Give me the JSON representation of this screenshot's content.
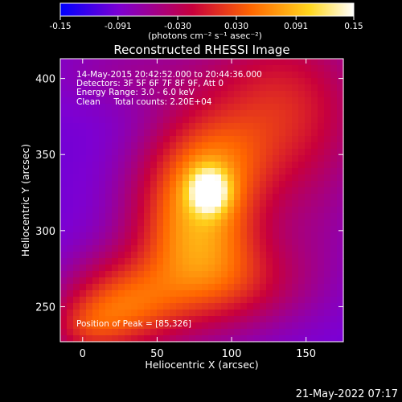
{
  "chart_data": {
    "type": "heatmap",
    "title": "Reconstructed RHESSI Image",
    "xlabel": "Heliocentric X (arcsec)",
    "ylabel": "Heliocentric Y (arcsec)",
    "xlim": [
      -15,
      175
    ],
    "ylim": [
      227,
      413
    ],
    "x_ticks": [
      0,
      50,
      100,
      150
    ],
    "y_ticks": [
      250,
      300,
      350,
      400
    ],
    "grid": false,
    "colorbar": {
      "range": [
        -0.15,
        0.15
      ],
      "ticks": [
        "-0.15",
        "-0.091",
        "-0.030",
        "0.030",
        "0.091",
        "0.15"
      ],
      "label": "(photons cm⁻² s⁻¹ asec⁻²)",
      "stops": [
        "#0000ff",
        "#7d00d2",
        "#c8003c",
        "#ff6600",
        "#ffd71e",
        "#ffffff"
      ]
    },
    "annotations": [
      "14-May-2015 20:42:52.000 to 20:44:36.000",
      "Detectors: 3F 5F 6F 7F 8F 9F, Att 0",
      "Energy Range: 3.0 - 6.0 keV",
      "Clean     Total counts: 2.20E+04"
    ],
    "peak_label": "Position of Peak = [85,326]",
    "peak": [
      85,
      326
    ],
    "field": {
      "base": -0.095,
      "components": [
        {
          "x": 85,
          "y": 326,
          "sx": 9,
          "sy": 10,
          "amp": 0.13
        },
        {
          "x": 75,
          "y": 300,
          "sx": 30,
          "sy": 38,
          "amp": 0.15
        },
        {
          "x": 85,
          "y": 345,
          "sx": 28,
          "sy": 26,
          "amp": 0.06
        },
        {
          "x": 135,
          "y": 380,
          "sx": 40,
          "sy": 42,
          "amp": 0.1
        },
        {
          "x": 25,
          "y": 250,
          "sx": 28,
          "sy": 22,
          "amp": 0.12
        },
        {
          "x": 0,
          "y": 235,
          "sx": 18,
          "sy": 14,
          "amp": 0.05
        },
        {
          "x": 110,
          "y": 265,
          "sx": 35,
          "sy": 22,
          "amp": 0.06
        },
        {
          "x": 35,
          "y": 405,
          "sx": 40,
          "sy": 18,
          "amp": 0.03
        },
        {
          "x": 160,
          "y": 300,
          "sx": 22,
          "sy": 30,
          "amp": 0.015
        }
      ]
    }
  },
  "timestamp": "21-May-2022 07:17"
}
